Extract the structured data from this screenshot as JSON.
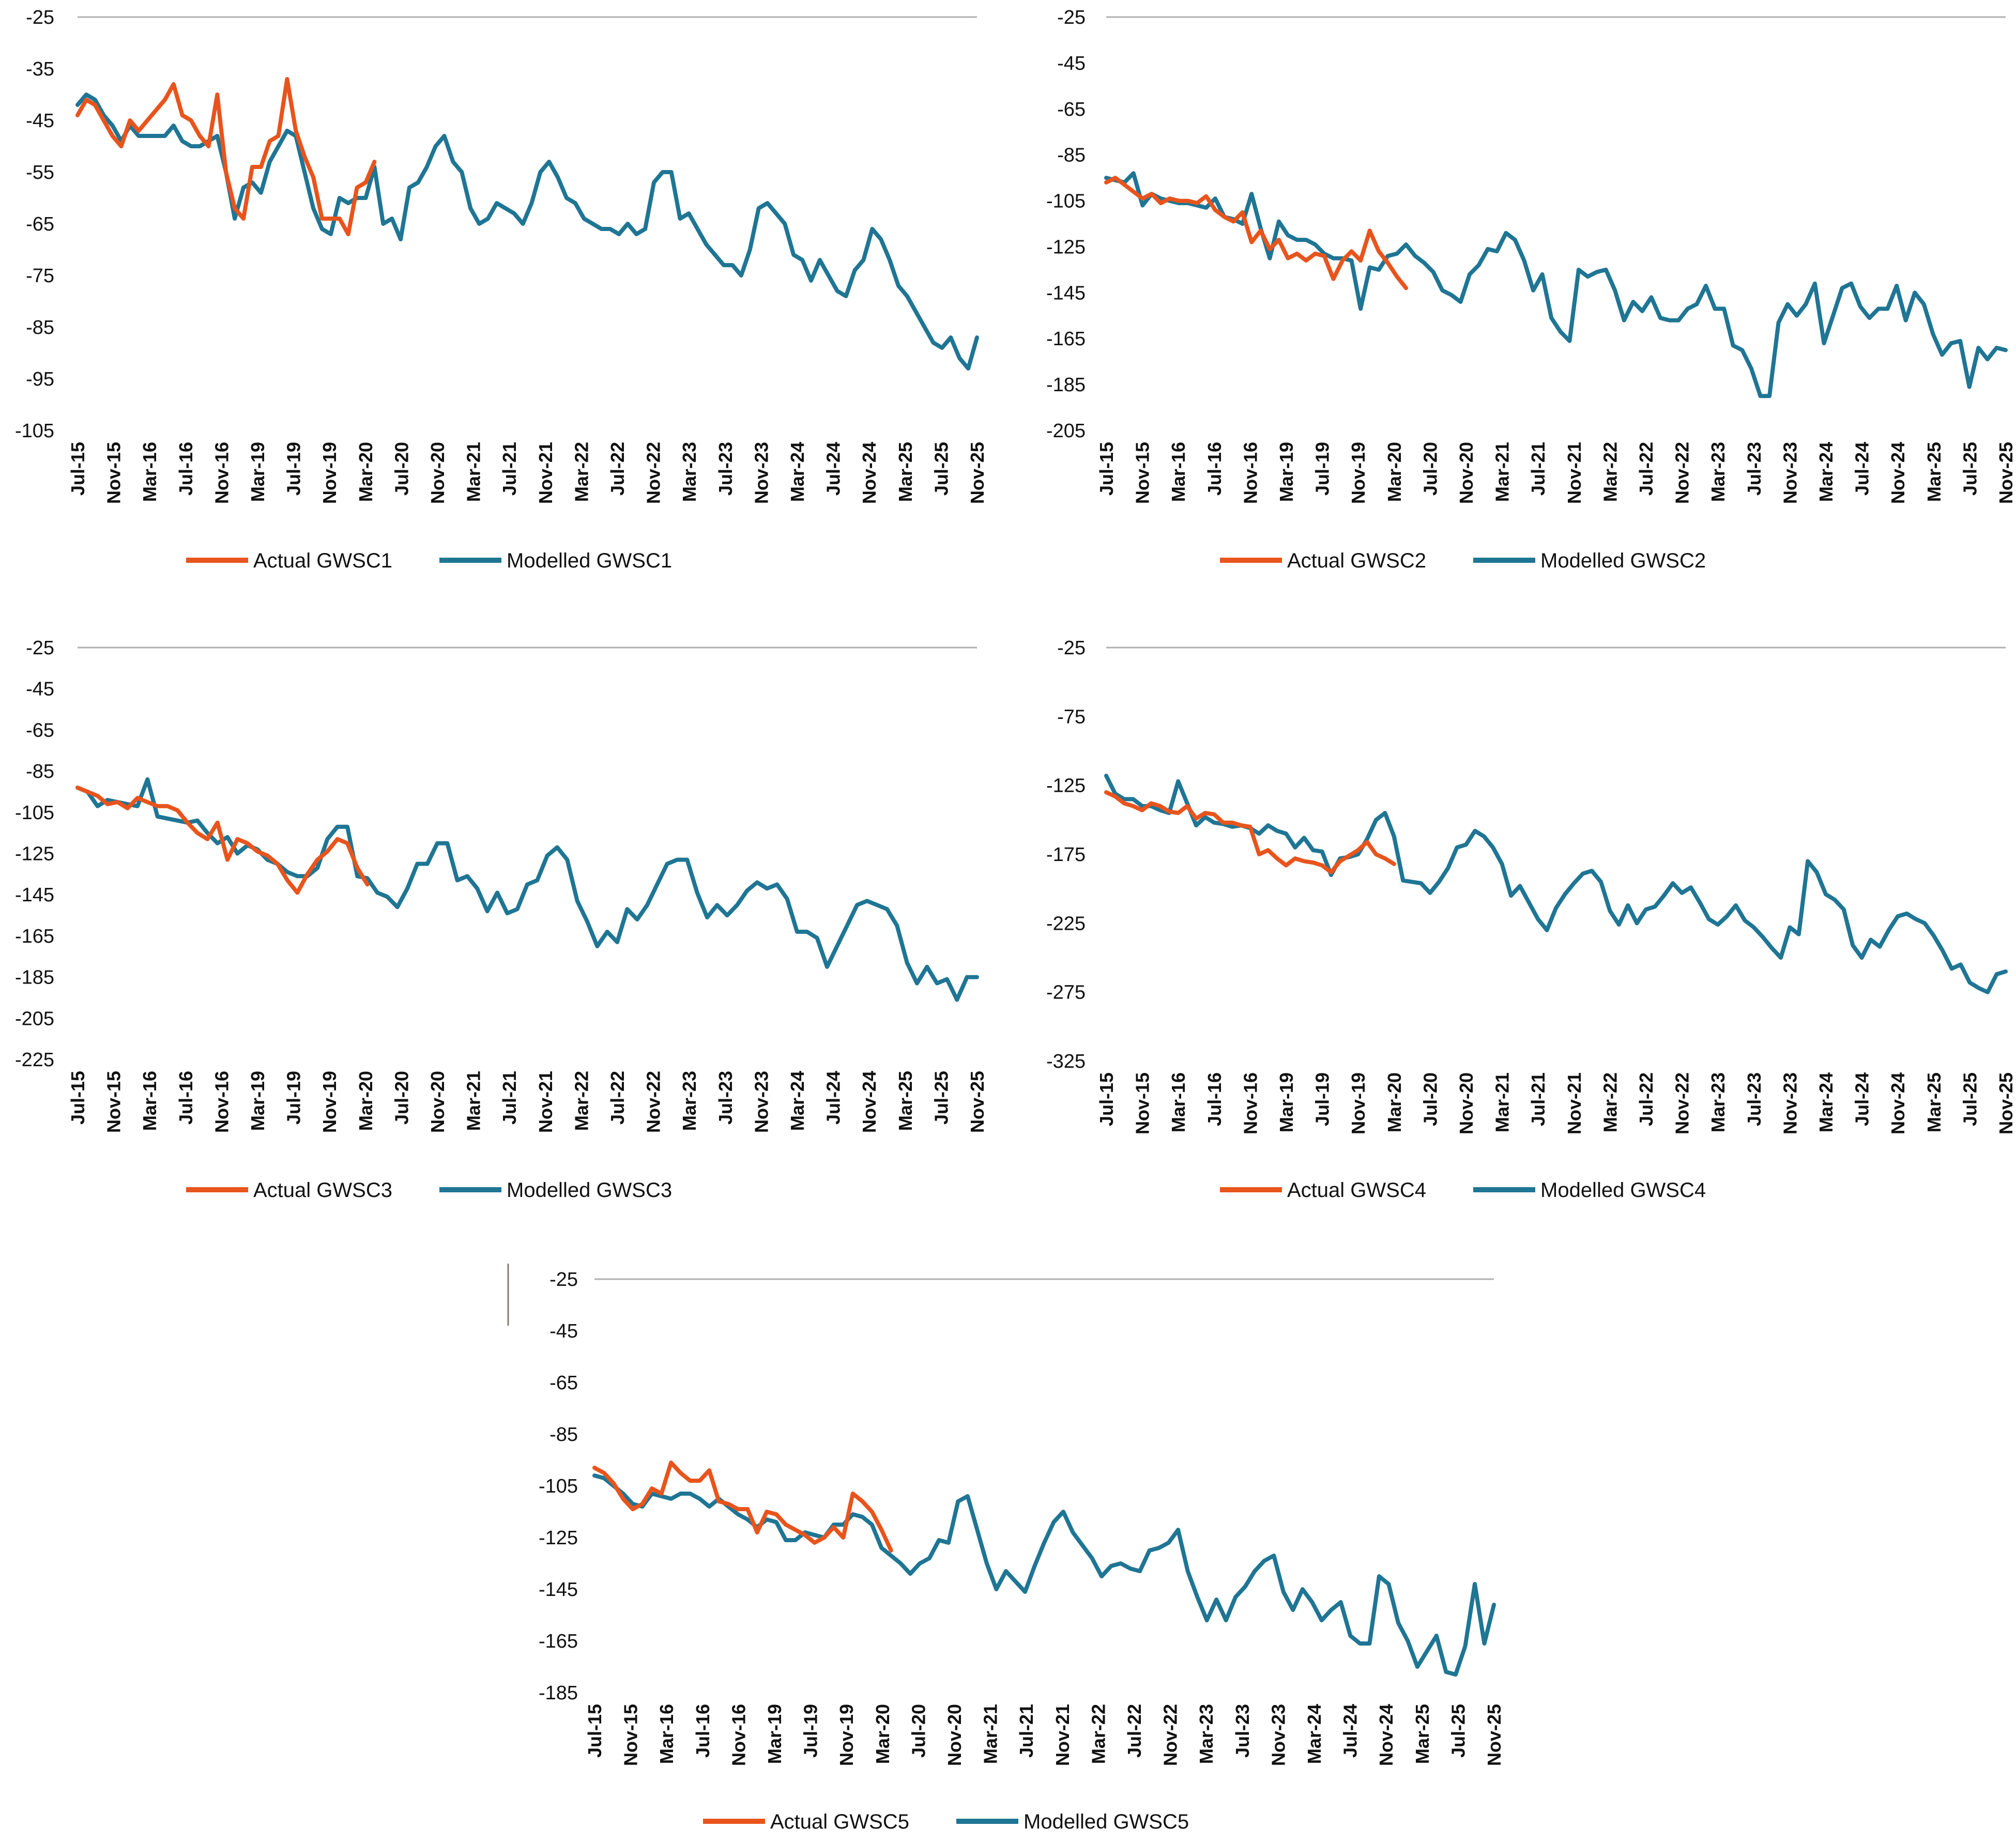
{
  "colors": {
    "actual": "#e8541c",
    "modelled": "#1f7594",
    "grid": "#b0b0b0",
    "text": "#111111"
  },
  "chart_data": [
    {
      "type": "line",
      "title": "",
      "xlabel": "",
      "ylabel": "",
      "ylim": [
        -105,
        -25
      ],
      "yticks": [
        "-25",
        "-35",
        "-45",
        "-55",
        "-65",
        "-75",
        "-85",
        "-95",
        "-105"
      ],
      "xticks": [
        "Jul-15",
        "Nov-15",
        "Mar-16",
        "Jul-16",
        "Nov-16",
        "Mar-19",
        "Jul-19",
        "Nov-19",
        "Mar-20",
        "Jul-20",
        "Nov-20",
        "Mar-21",
        "Jul-21",
        "Nov-21",
        "Mar-22",
        "Jul-22",
        "Nov-22",
        "Mar-23",
        "Jul-23",
        "Nov-23",
        "Mar-24",
        "Jul-24",
        "Nov-24",
        "Mar-25",
        "Jul-25",
        "Nov-25"
      ],
      "series": [
        {
          "name": "Actual GWSC1",
          "values": [
            -44,
            -41,
            -42,
            -45,
            -48,
            -50,
            -45,
            -47,
            -45,
            -43,
            -41,
            -38,
            -44,
            -45,
            -48,
            -50,
            -40,
            -55,
            -62,
            -64,
            -54,
            -54,
            -49,
            -48,
            -37,
            -47,
            -52,
            -56,
            -64,
            -64,
            -64,
            -67,
            -58,
            -57,
            -53
          ]
        },
        {
          "name": "Modelled GWSC1",
          "values": [
            -42,
            -40,
            -41,
            -44,
            -46,
            -49,
            -46,
            -48,
            -48,
            -48,
            -48,
            -46,
            -49,
            -50,
            -50,
            -49,
            -48,
            -55,
            -64,
            -58,
            -57,
            -59,
            -53,
            -50,
            -47,
            -48,
            -55,
            -62,
            -66,
            -67,
            -60,
            -61,
            -60,
            -60,
            -54,
            -65,
            -64,
            -68,
            -58,
            -57,
            -54,
            -50,
            -48,
            -53,
            -55,
            -62,
            -65,
            -64,
            -61,
            -62,
            -63,
            -65,
            -61,
            -55,
            -53,
            -56,
            -60,
            -61,
            -64,
            -65,
            -66,
            -66,
            -67,
            -65,
            -67,
            -66,
            -57,
            -55,
            -55,
            -64,
            -63,
            -66,
            -69,
            -71,
            -73,
            -73,
            -75,
            -70,
            -62,
            -61,
            -63,
            -65,
            -71,
            -72,
            -76,
            -72,
            -75,
            -78,
            -79,
            -74,
            -72,
            -66,
            -68,
            -72,
            -77,
            -79,
            -82,
            -85,
            -88,
            -89,
            -87,
            -91,
            -93,
            -87
          ]
        }
      ]
    },
    {
      "type": "line",
      "title": "",
      "xlabel": "",
      "ylabel": "",
      "ylim": [
        -205,
        -25
      ],
      "yticks": [
        "-25",
        "-45",
        "-65",
        "-85",
        "-105",
        "-125",
        "-145",
        "-165",
        "-185",
        "-205"
      ],
      "xticks": [
        "Jul-15",
        "Nov-15",
        "Mar-16",
        "Jul-16",
        "Nov-16",
        "Mar-19",
        "Jul-19",
        "Nov-19",
        "Mar-20",
        "Jul-20",
        "Nov-20",
        "Mar-21",
        "Jul-21",
        "Nov-21",
        "Mar-22",
        "Jul-22",
        "Nov-22",
        "Mar-23",
        "Jul-23",
        "Nov-23",
        "Mar-24",
        "Jul-24",
        "Nov-24",
        "Mar-25",
        "Jul-25",
        "Nov-25"
      ],
      "series": [
        {
          "name": "Actual GWSC2",
          "values": [
            -97,
            -95,
            -98,
            -101,
            -104,
            -102,
            -106,
            -104,
            -105,
            -105,
            -106,
            -103,
            -109,
            -112,
            -114,
            -110,
            -123,
            -118,
            -126,
            -122,
            -130,
            -128,
            -131,
            -128,
            -129,
            -139,
            -131,
            -127,
            -131,
            -118,
            -127,
            -132,
            -138,
            -143
          ]
        },
        {
          "name": "Modelled GWSC2",
          "values": [
            -95,
            -96,
            -97,
            -93,
            -107,
            -102,
            -104,
            -105,
            -106,
            -106,
            -107,
            -108,
            -104,
            -112,
            -113,
            -115,
            -102,
            -117,
            -130,
            -114,
            -120,
            -122,
            -122,
            -124,
            -128,
            -130,
            -130,
            -131,
            -152,
            -134,
            -135,
            -129,
            -128,
            -124,
            -129,
            -132,
            -136,
            -144,
            -146,
            -149,
            -137,
            -133,
            -126,
            -127,
            -119,
            -122,
            -131,
            -144,
            -137,
            -156,
            -162,
            -166,
            -135,
            -138,
            -136,
            -135,
            -144,
            -157,
            -149,
            -153,
            -147,
            -156,
            -157,
            -157,
            -152,
            -150,
            -142,
            -152,
            -152,
            -168,
            -170,
            -178,
            -190,
            -190,
            -158,
            -150,
            -155,
            -150,
            -141,
            -167,
            -155,
            -143,
            -141,
            -151,
            -156,
            -152,
            -152,
            -142,
            -157,
            -145,
            -150,
            -163,
            -172,
            -167,
            -166,
            -186,
            -169,
            -174,
            -169,
            -170
          ]
        }
      ]
    },
    {
      "type": "line",
      "title": "",
      "xlabel": "",
      "ylabel": "",
      "ylim": [
        -225,
        -25
      ],
      "yticks": [
        "-25",
        "-45",
        "-65",
        "-85",
        "-105",
        "-125",
        "-145",
        "-165",
        "-185",
        "-205",
        "-225"
      ],
      "xticks": [
        "Jul-15",
        "Nov-15",
        "Mar-16",
        "Jul-16",
        "Nov-16",
        "Mar-19",
        "Jul-19",
        "Nov-19",
        "Mar-20",
        "Jul-20",
        "Nov-20",
        "Mar-21",
        "Jul-21",
        "Nov-21",
        "Mar-22",
        "Jul-22",
        "Nov-22",
        "Mar-23",
        "Jul-23",
        "Nov-23",
        "Mar-24",
        "Jul-24",
        "Nov-24",
        "Mar-25",
        "Jul-25",
        "Nov-25"
      ],
      "series": [
        {
          "name": "Actual GWSC3",
          "values": [
            -93,
            -95,
            -97,
            -101,
            -100,
            -103,
            -98,
            -100,
            -102,
            -102,
            -104,
            -110,
            -115,
            -118,
            -110,
            -128,
            -118,
            -120,
            -124,
            -126,
            -130,
            -138,
            -144,
            -135,
            -128,
            -124,
            -118,
            -120,
            -132,
            -140
          ]
        },
        {
          "name": "Modelled GWSC3",
          "values": [
            -93,
            -95,
            -102,
            -99,
            -100,
            -101,
            -102,
            -89,
            -107,
            -108,
            -109,
            -110,
            -109,
            -115,
            -120,
            -117,
            -125,
            -121,
            -123,
            -128,
            -130,
            -134,
            -136,
            -136,
            -132,
            -118,
            -112,
            -112,
            -136,
            -137,
            -144,
            -146,
            -151,
            -142,
            -130,
            -130,
            -120,
            -120,
            -138,
            -136,
            -142,
            -153,
            -144,
            -154,
            -152,
            -140,
            -138,
            -126,
            -122,
            -128,
            -148,
            -158,
            -170,
            -163,
            -168,
            -152,
            -157,
            -150,
            -140,
            -130,
            -128,
            -128,
            -144,
            -156,
            -150,
            -155,
            -150,
            -143,
            -139,
            -142,
            -140,
            -147,
            -163,
            -163,
            -166,
            -180,
            -170,
            -160,
            -150,
            -148,
            -150,
            -152,
            -160,
            -178,
            -188,
            -180,
            -188,
            -186,
            -196,
            -185,
            -185
          ]
        }
      ]
    },
    {
      "type": "line",
      "title": "",
      "xlabel": "",
      "ylabel": "",
      "ylim": [
        -325,
        -25
      ],
      "yticks": [
        "-25",
        "-75",
        "-125",
        "-175",
        "-225",
        "-275",
        "-325"
      ],
      "xticks": [
        "Jul-15",
        "Nov-15",
        "Mar-16",
        "Jul-16",
        "Nov-16",
        "Mar-19",
        "Jul-19",
        "Nov-19",
        "Mar-20",
        "Jul-20",
        "Nov-20",
        "Mar-21",
        "Jul-21",
        "Nov-21",
        "Mar-22",
        "Jul-22",
        "Nov-22",
        "Mar-23",
        "Jul-23",
        "Nov-23",
        "Mar-24",
        "Jul-24",
        "Nov-24",
        "Mar-25",
        "Jul-25",
        "Nov-25"
      ],
      "series": [
        {
          "name": "Actual GWSC4",
          "values": [
            -130,
            -133,
            -138,
            -140,
            -143,
            -138,
            -140,
            -144,
            -145,
            -140,
            -149,
            -145,
            -146,
            -152,
            -152,
            -154,
            -155,
            -175,
            -172,
            -178,
            -183,
            -178,
            -180,
            -181,
            -183,
            -188,
            -180,
            -176,
            -172,
            -166,
            -175,
            -178,
            -182
          ]
        },
        {
          "name": "Modelled GWSC4",
          "values": [
            -118,
            -131,
            -135,
            -135,
            -140,
            -140,
            -143,
            -145,
            -122,
            -138,
            -154,
            -148,
            -152,
            -153,
            -155,
            -154,
            -156,
            -160,
            -154,
            -158,
            -160,
            -170,
            -163,
            -172,
            -173,
            -190,
            -178,
            -177,
            -175,
            -164,
            -150,
            -145,
            -162,
            -194,
            -195,
            -196,
            -203,
            -195,
            -185,
            -170,
            -168,
            -158,
            -162,
            -170,
            -182,
            -205,
            -198,
            -210,
            -222,
            -230,
            -214,
            -204,
            -196,
            -189,
            -187,
            -195,
            -216,
            -226,
            -212,
            -225,
            -215,
            -213,
            -205,
            -196,
            -203,
            -199,
            -210,
            -222,
            -226,
            -220,
            -212,
            -223,
            -228,
            -235,
            -243,
            -250,
            -228,
            -233,
            -180,
            -188,
            -204,
            -208,
            -215,
            -241,
            -250,
            -237,
            -242,
            -230,
            -220,
            -218,
            -222,
            -225,
            -234,
            -245,
            -258,
            -255,
            -268,
            -272,
            -275,
            -262,
            -260
          ]
        }
      ]
    },
    {
      "type": "line",
      "title": "",
      "xlabel": "",
      "ylabel": "",
      "ylim": [
        -185,
        -25
      ],
      "yticks": [
        "-25",
        "-45",
        "-65",
        "-85",
        "-105",
        "-125",
        "-145",
        "-165",
        "-185"
      ],
      "xticks": [
        "Jul-15",
        "Nov-15",
        "Mar-16",
        "Jul-16",
        "Nov-16",
        "Mar-19",
        "Jul-19",
        "Nov-19",
        "Mar-20",
        "Jul-20",
        "Nov-20",
        "Mar-21",
        "Jul-21",
        "Nov-21",
        "Mar-22",
        "Jul-22",
        "Nov-22",
        "Mar-23",
        "Jul-23",
        "Nov-23",
        "Mar-24",
        "Jul-24",
        "Nov-24",
        "Mar-25",
        "Jul-25",
        "Nov-25"
      ],
      "series": [
        {
          "name": "Actual GWSC5",
          "values": [
            -98,
            -100,
            -104,
            -110,
            -114,
            -112,
            -106,
            -108,
            -96,
            -100,
            -103,
            -103,
            -99,
            -111,
            -112,
            -114,
            -114,
            -123,
            -115,
            -116,
            -120,
            -122,
            -124,
            -127,
            -125,
            -121,
            -125,
            -108,
            -111,
            -115,
            -122,
            -130
          ]
        },
        {
          "name": "Modelled GWSC5",
          "values": [
            -101,
            -102,
            -105,
            -108,
            -112,
            -113,
            -108,
            -109,
            -110,
            -108,
            -108,
            -110,
            -113,
            -110,
            -113,
            -116,
            -118,
            -121,
            -118,
            -119,
            -126,
            -126,
            -123,
            -124,
            -125,
            -120,
            -120,
            -116,
            -117,
            -120,
            -129,
            -132,
            -135,
            -139,
            -135,
            -133,
            -126,
            -127,
            -111,
            -109,
            -122,
            -135,
            -145,
            -138,
            -142,
            -146,
            -136,
            -127,
            -119,
            -115,
            -123,
            -128,
            -133,
            -140,
            -136,
            -135,
            -137,
            -138,
            -130,
            -129,
            -127,
            -122,
            -138,
            -148,
            -157,
            -149,
            -157,
            -148,
            -144,
            -138,
            -134,
            -132,
            -146,
            -153,
            -145,
            -150,
            -157,
            -153,
            -150,
            -163,
            -166,
            -166,
            -140,
            -143,
            -158,
            -165,
            -175,
            -169,
            -163,
            -177,
            -178,
            -167,
            -143,
            -166,
            -151
          ]
        }
      ]
    }
  ]
}
